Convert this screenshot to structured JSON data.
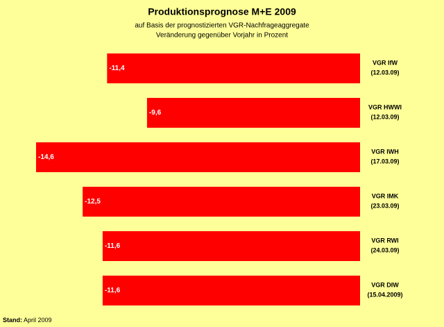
{
  "chart_data": {
    "type": "bar",
    "orientation": "horizontal",
    "title": "Produktionsprognose M+E 2009",
    "subtitle": [
      "auf Basis der prognostizierten VGR-Nachfrageaggregate",
      "Veränderung gegenüber Vorjahr in Prozent"
    ],
    "categories": [
      "VGR IfW\n(12.03.09)",
      "VGR HWWI\n(12.03.09)",
      "VGR IWH\n(17.03.09)",
      "VGR IMK\n(23.03.09)",
      "VGR RWI\n(24.03.09)",
      "VGR DIW\n(15.04.2009)"
    ],
    "values": [
      -11.4,
      -9.6,
      -14.6,
      -12.5,
      -11.6,
      -11.6
    ],
    "value_labels": [
      "-11,4",
      "-9,6",
      "-14,6",
      "-12,5",
      "-11,6",
      "-11,6"
    ],
    "color": "#ff0000",
    "footer": {
      "label": "Stand:",
      "text": "April 2009"
    }
  }
}
